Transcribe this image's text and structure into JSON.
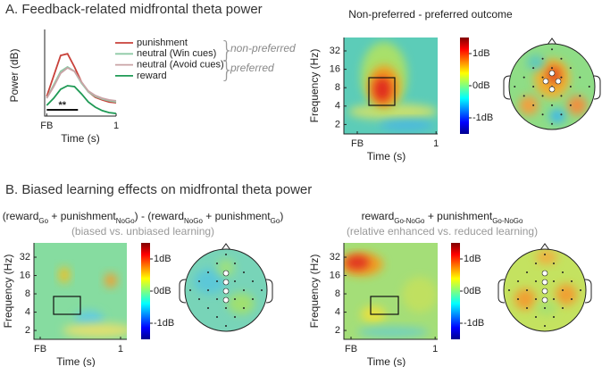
{
  "sections": [
    {
      "title": "A. Feedback-related midfrontal theta power"
    },
    {
      "title": "B. Biased learning effects on midfrontal theta power"
    }
  ],
  "chart_data": [
    {
      "type": "line",
      "ylabel": "Power (dB)",
      "xlabel": "Time (s)",
      "x": [
        0,
        0.1,
        0.2,
        0.3,
        0.4,
        0.5,
        0.6,
        0.7,
        0.8,
        0.9,
        1
      ],
      "xlim": [
        -0.03,
        1
      ],
      "ylim": [
        0,
        3
      ],
      "xticks": [
        {
          "value": 0,
          "label": "FB"
        },
        1
      ],
      "series": [
        {
          "name": "punishment",
          "color": "#c8413a",
          "values": [
            0.68,
            1.39,
            2.1,
            2.16,
            1.7,
            1.18,
            0.84,
            0.65,
            0.56,
            0.49,
            0.46
          ]
        },
        {
          "name": "neutral (Win cues)",
          "color": "#8fcaa6",
          "values": [
            0.62,
            1.08,
            1.55,
            1.7,
            1.55,
            1.14,
            0.84,
            0.68,
            0.59,
            0.53,
            0.49
          ]
        },
        {
          "name": "neutral (Avoid cues)",
          "color": "#c9a3a6",
          "values": [
            0.62,
            1.02,
            1.48,
            1.67,
            1.55,
            1.18,
            0.87,
            0.71,
            0.62,
            0.56,
            0.53
          ]
        },
        {
          "name": "reward",
          "color": "#1f9a55",
          "values": [
            0.37,
            0.62,
            0.93,
            1.05,
            1.02,
            0.77,
            0.49,
            0.31,
            0.19,
            0.12,
            0.09
          ]
        }
      ],
      "groups": [
        {
          "label": "non-preferred"
        },
        {
          "label": "preferred"
        }
      ],
      "significance": {
        "label": "**",
        "x": [
          0,
          0.45
        ]
      }
    },
    {
      "type": "heatmap",
      "title_parts": [
        "Non-preferred - preferred outcome"
      ],
      "ylabel": "Frequency (Hz)",
      "xlabel": "Time (s)",
      "yscale": "log",
      "ylim": [
        1.4,
        53
      ],
      "yticks": [
        2,
        4,
        8,
        16,
        32
      ],
      "xlim": [
        -0.17,
        1.02
      ],
      "xticks": [
        {
          "value": 0,
          "label": "FB"
        },
        1
      ],
      "clim": [
        -1.5,
        1.5
      ],
      "cticks": [
        {
          "value": 1,
          "label": "1dB"
        },
        {
          "value": 0,
          "label": "0dB"
        },
        {
          "value": -1,
          "label": "-1dB"
        }
      ]
    },
    {
      "type": "heatmap",
      "title_parts": [
        "(reward",
        "Go",
        " + punishment",
        "NoGo",
        ") - (reward",
        "NoGo",
        " + punishment",
        "Go",
        ")"
      ],
      "subtitle": "(biased vs. unbiased learning)",
      "ylabel": "Frequency (Hz)",
      "xlabel": "Time (s)",
      "yscale": "log",
      "ylim": [
        1.43,
        55
      ],
      "yticks": [
        2,
        4,
        8,
        16,
        32
      ],
      "xlim": [
        -0.078,
        1.078
      ],
      "xticks": [
        {
          "value": 0,
          "label": "FB"
        },
        1
      ],
      "clim": [
        -1.5,
        1.5
      ],
      "cticks": [
        {
          "value": 1,
          "label": "1dB"
        },
        {
          "value": 0,
          "label": "0dB"
        },
        {
          "value": -1,
          "label": "-1dB"
        }
      ]
    },
    {
      "type": "heatmap",
      "title_parts": [
        "reward",
        "Go-NoGo",
        " + punishment",
        "Go-NoGo"
      ],
      "subtitle": "(relative enhanced vs. reduced learning)",
      "ylabel": "Frequency (Hz)",
      "xlabel": "Time (s)",
      "yscale": "log",
      "ylim": [
        1.43,
        55
      ],
      "yticks": [
        2,
        4,
        8,
        16,
        32
      ],
      "xlim": [
        -0.085,
        1.03
      ],
      "xticks": [
        {
          "value": 0,
          "label": "FB"
        },
        1
      ],
      "clim": [
        -1.5,
        1.5
      ],
      "cticks": [
        {
          "value": 1,
          "label": "1dB"
        },
        {
          "value": 0,
          "label": "0dB"
        },
        {
          "value": -1,
          "label": "-1dB"
        }
      ]
    }
  ]
}
